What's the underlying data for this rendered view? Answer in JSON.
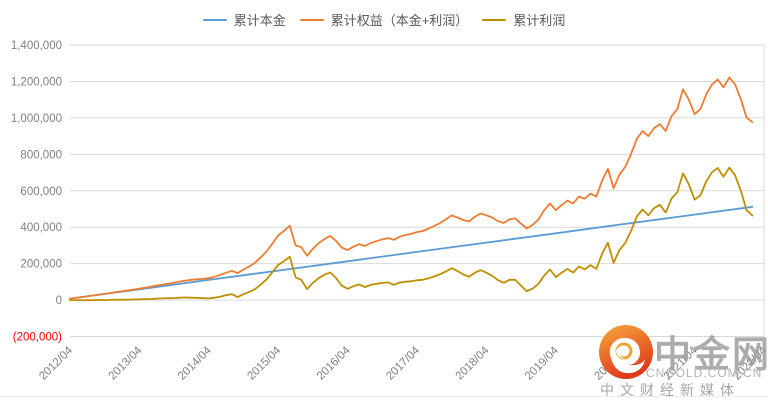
{
  "legend": {
    "items": [
      {
        "label": "累计本金",
        "color": "#5B9BD5"
      },
      {
        "label": "累计权益（本金+利润）",
        "color": "#ED7D31"
      },
      {
        "label": "累计利润",
        "color": "#BF8F00"
      }
    ]
  },
  "watermark": {
    "brand": "中金网",
    "url": "CNGOLD.COM.CN",
    "tagline": "中文财经新媒体",
    "logo_outer_top": "#f6a93b",
    "logo_outer_bottom": "#e03a1a",
    "logo_cloud": "#ffffff",
    "logo_swirl": "#f0a32f"
  },
  "chart_data": {
    "type": "line",
    "title": "",
    "grid": true,
    "legend_position": "top",
    "background": "#ffffff",
    "gridline_color": "#d9d9d9",
    "axis_label_color": "#808080",
    "negative_label_color": "#ff0000",
    "x_axis": {
      "unit": "months_since_2012_04",
      "range": [
        0,
        120
      ],
      "tick_interval_months": 12,
      "tick_labels": [
        "2012/04",
        "2013/04",
        "2014/04",
        "2015/04",
        "2016/04",
        "2017/04",
        "2018/04",
        "2019/04",
        "2020/04",
        "2021/04",
        "2022/04"
      ]
    },
    "y_axis": {
      "min": -200000,
      "max": 1400000,
      "step": 200000,
      "tick_labels": [
        "1,400,000",
        "1,200,000",
        "1,000,000",
        "800,000",
        "600,000",
        "400,000",
        "200,000",
        "0",
        "(200,000)"
      ]
    },
    "series": [
      {
        "name": "累计本金",
        "color": "#5B9BD5",
        "points": [
          [
            0,
            8000
          ],
          [
            12,
            59300
          ],
          [
            24,
            110500
          ],
          [
            36,
            161800
          ],
          [
            48,
            213000
          ],
          [
            60,
            264200
          ],
          [
            72,
            315400
          ],
          [
            84,
            366700
          ],
          [
            96,
            417900
          ],
          [
            108,
            469100
          ],
          [
            118,
            511800
          ]
        ]
      },
      {
        "name": "累计权益（本金+利润）",
        "color": "#ED7D31",
        "points": [
          [
            0,
            8000
          ],
          [
            1,
            12000
          ],
          [
            2,
            16000
          ],
          [
            3,
            20000
          ],
          [
            4,
            25000
          ],
          [
            5,
            30000
          ],
          [
            6,
            34000
          ],
          [
            7,
            39000
          ],
          [
            8,
            44000
          ],
          [
            9,
            48000
          ],
          [
            10,
            53000
          ],
          [
            11,
            58000
          ],
          [
            12,
            63000
          ],
          [
            13,
            68000
          ],
          [
            14,
            74000
          ],
          [
            15,
            80000
          ],
          [
            16,
            85000
          ],
          [
            17,
            90000
          ],
          [
            18,
            96000
          ],
          [
            19,
            102000
          ],
          [
            20,
            107000
          ],
          [
            21,
            111000
          ],
          [
            22,
            114000
          ],
          [
            23,
            116000
          ],
          [
            24,
            120000
          ],
          [
            25,
            128000
          ],
          [
            26,
            138000
          ],
          [
            27,
            150000
          ],
          [
            28,
            160000
          ],
          [
            29,
            148000
          ],
          [
            30,
            168000
          ],
          [
            31,
            185000
          ],
          [
            32,
            205000
          ],
          [
            33,
            235000
          ],
          [
            34,
            267000
          ],
          [
            35,
            310000
          ],
          [
            36,
            355000
          ],
          [
            37,
            380000
          ],
          [
            38,
            408000
          ],
          [
            39,
            300000
          ],
          [
            40,
            290000
          ],
          [
            41,
            243000
          ],
          [
            42,
            282000
          ],
          [
            43,
            312000
          ],
          [
            44,
            335000
          ],
          [
            45,
            352000
          ],
          [
            46,
            325000
          ],
          [
            47,
            288000
          ],
          [
            48,
            275000
          ],
          [
            49,
            293000
          ],
          [
            50,
            307000
          ],
          [
            51,
            297000
          ],
          [
            52,
            313000
          ],
          [
            53,
            323000
          ],
          [
            54,
            333000
          ],
          [
            55,
            340000
          ],
          [
            56,
            331000
          ],
          [
            57,
            347000
          ],
          [
            58,
            357000
          ],
          [
            59,
            363000
          ],
          [
            60,
            373000
          ],
          [
            61,
            379000
          ],
          [
            62,
            393000
          ],
          [
            63,
            407000
          ],
          [
            64,
            423000
          ],
          [
            65,
            443000
          ],
          [
            66,
            465000
          ],
          [
            67,
            453000
          ],
          [
            68,
            439000
          ],
          [
            69,
            431000
          ],
          [
            70,
            457000
          ],
          [
            71,
            475000
          ],
          [
            72,
            465000
          ],
          [
            73,
            453000
          ],
          [
            74,
            433000
          ],
          [
            75,
            423000
          ],
          [
            76,
            443000
          ],
          [
            77,
            448000
          ],
          [
            78,
            419000
          ],
          [
            79,
            393000
          ],
          [
            80,
            413000
          ],
          [
            81,
            443000
          ],
          [
            82,
            493000
          ],
          [
            83,
            530000
          ],
          [
            84,
            493000
          ],
          [
            85,
            521000
          ],
          [
            86,
            546000
          ],
          [
            87,
            530000
          ],
          [
            88,
            568000
          ],
          [
            89,
            557000
          ],
          [
            90,
            584000
          ],
          [
            91,
            568000
          ],
          [
            92,
            655000
          ],
          [
            93,
            720000
          ],
          [
            94,
            613000
          ],
          [
            95,
            688000
          ],
          [
            96,
            731000
          ],
          [
            97,
            801000
          ],
          [
            98,
            884000
          ],
          [
            99,
            928000
          ],
          [
            100,
            900000
          ],
          [
            101,
            944000
          ],
          [
            102,
            966000
          ],
          [
            103,
            928000
          ],
          [
            104,
            1009000
          ],
          [
            105,
            1048000
          ],
          [
            106,
            1157000
          ],
          [
            107,
            1101000
          ],
          [
            108,
            1020000
          ],
          [
            109,
            1048000
          ],
          [
            110,
            1129000
          ],
          [
            111,
            1184000
          ],
          [
            112,
            1211000
          ],
          [
            113,
            1167000
          ],
          [
            114,
            1222000
          ],
          [
            115,
            1184000
          ],
          [
            116,
            1102000
          ],
          [
            117,
            1001000
          ],
          [
            118,
            976000
          ]
        ]
      },
      {
        "name": "累计利润",
        "color": "#BF8F00",
        "points": [
          [
            0,
            0
          ],
          [
            1,
            0
          ],
          [
            2,
            -1000
          ],
          [
            3,
            -1000
          ],
          [
            4,
            0
          ],
          [
            5,
            1000
          ],
          [
            6,
            0
          ],
          [
            7,
            1000
          ],
          [
            8,
            2000
          ],
          [
            9,
            2000
          ],
          [
            10,
            2000
          ],
          [
            11,
            3000
          ],
          [
            12,
            4000
          ],
          [
            13,
            5000
          ],
          [
            14,
            6000
          ],
          [
            15,
            8000
          ],
          [
            16,
            9000
          ],
          [
            17,
            10000
          ],
          [
            18,
            11000
          ],
          [
            19,
            13000
          ],
          [
            20,
            14000
          ],
          [
            21,
            13000
          ],
          [
            22,
            12000
          ],
          [
            23,
            10000
          ],
          [
            24,
            9000
          ],
          [
            25,
            13000
          ],
          [
            26,
            19000
          ],
          [
            27,
            27000
          ],
          [
            28,
            32000
          ],
          [
            29,
            16000
          ],
          [
            30,
            32000
          ],
          [
            31,
            45000
          ],
          [
            32,
            60000
          ],
          [
            33,
            86000
          ],
          [
            34,
            114000
          ],
          [
            35,
            153000
          ],
          [
            36,
            193000
          ],
          [
            37,
            214000
          ],
          [
            38,
            238000
          ],
          [
            39,
            125000
          ],
          [
            40,
            111000
          ],
          [
            41,
            60000
          ],
          [
            42,
            95000
          ],
          [
            43,
            120000
          ],
          [
            44,
            139000
          ],
          [
            45,
            152000
          ],
          [
            46,
            121000
          ],
          [
            47,
            79000
          ],
          [
            48,
            62000
          ],
          [
            49,
            76000
          ],
          [
            50,
            86000
          ],
          [
            51,
            71000
          ],
          [
            52,
            83000
          ],
          [
            53,
            89000
          ],
          [
            54,
            94000
          ],
          [
            55,
            97000
          ],
          [
            56,
            84000
          ],
          [
            57,
            96000
          ],
          [
            58,
            101000
          ],
          [
            59,
            103000
          ],
          [
            60,
            109000
          ],
          [
            61,
            111000
          ],
          [
            62,
            120000
          ],
          [
            63,
            130000
          ],
          [
            64,
            142000
          ],
          [
            65,
            157000
          ],
          [
            66,
            175000
          ],
          [
            67,
            159000
          ],
          [
            68,
            141000
          ],
          [
            69,
            128000
          ],
          [
            70,
            150000
          ],
          [
            71,
            164000
          ],
          [
            72,
            150000
          ],
          [
            73,
            133000
          ],
          [
            74,
            109000
          ],
          [
            75,
            95000
          ],
          [
            76,
            111000
          ],
          [
            77,
            111000
          ],
          [
            78,
            78000
          ],
          [
            79,
            48000
          ],
          [
            80,
            63000
          ],
          [
            81,
            89000
          ],
          [
            82,
            135000
          ],
          [
            83,
            168000
          ],
          [
            84,
            126000
          ],
          [
            85,
            150000
          ],
          [
            86,
            171000
          ],
          [
            87,
            151000
          ],
          [
            88,
            184000
          ],
          [
            89,
            169000
          ],
          [
            90,
            192000
          ],
          [
            91,
            171000
          ],
          [
            92,
            254000
          ],
          [
            93,
            315000
          ],
          [
            94,
            204000
          ],
          [
            95,
            274000
          ],
          [
            96,
            313000
          ],
          [
            97,
            379000
          ],
          [
            98,
            458000
          ],
          [
            99,
            497000
          ],
          [
            100,
            465000
          ],
          [
            101,
            505000
          ],
          [
            102,
            523000
          ],
          [
            103,
            480000
          ],
          [
            104,
            557000
          ],
          [
            105,
            592000
          ],
          [
            106,
            696000
          ],
          [
            107,
            636000
          ],
          [
            108,
            551000
          ],
          [
            109,
            575000
          ],
          [
            110,
            651000
          ],
          [
            111,
            702000
          ],
          [
            112,
            725000
          ],
          [
            113,
            677000
          ],
          [
            114,
            727000
          ],
          [
            115,
            685000
          ],
          [
            116,
            599000
          ],
          [
            117,
            493000
          ],
          [
            118,
            464000
          ]
        ]
      }
    ]
  }
}
